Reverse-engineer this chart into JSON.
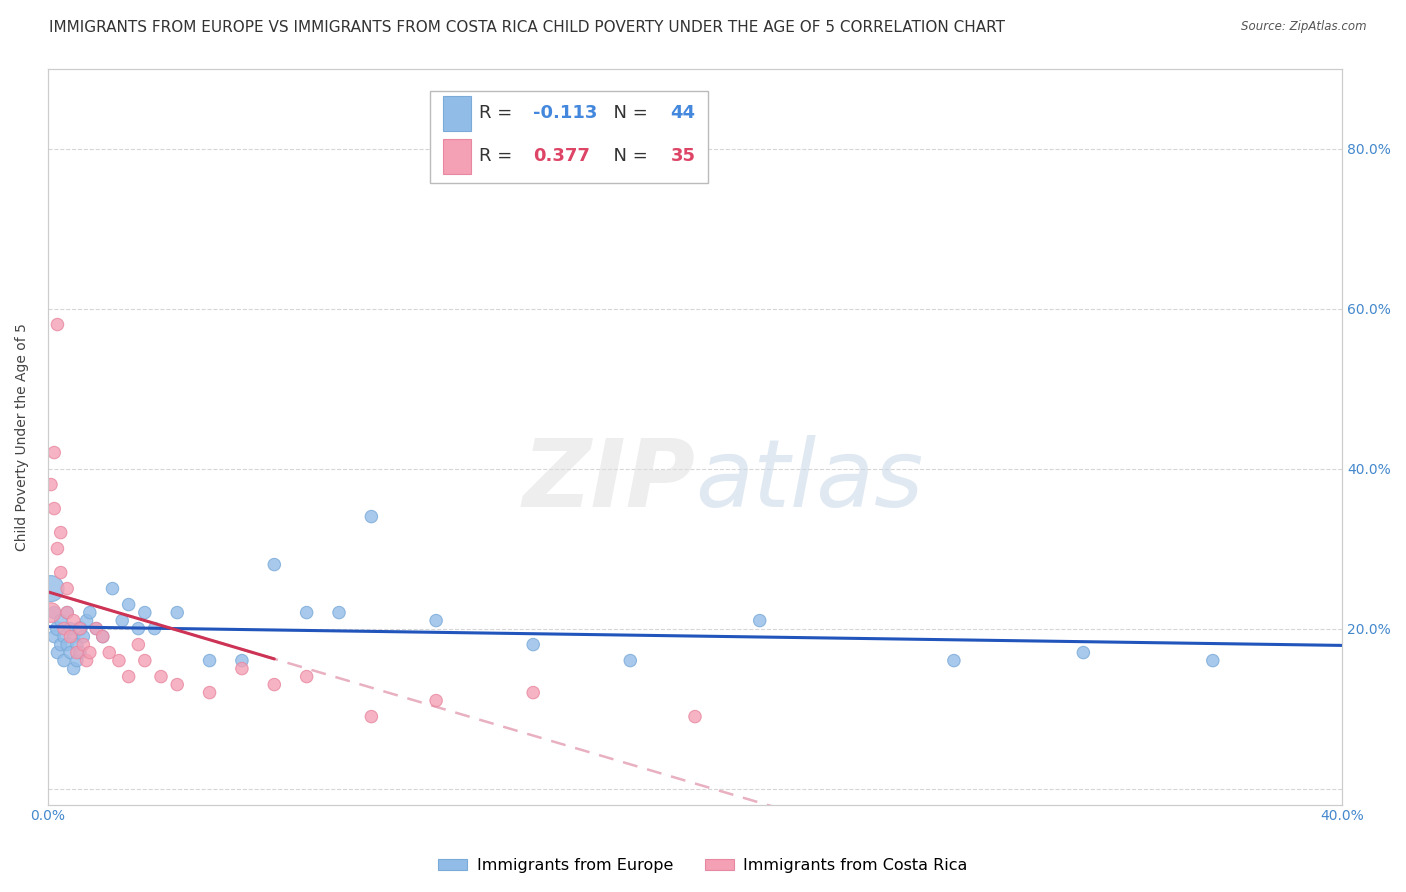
{
  "title": "IMMIGRANTS FROM EUROPE VS IMMIGRANTS FROM COSTA RICA CHILD POVERTY UNDER THE AGE OF 5 CORRELATION CHART",
  "source": "Source: ZipAtlas.com",
  "ylabel": "Child Poverty Under the Age of 5",
  "xlim": [
    0.0,
    0.4
  ],
  "ylim": [
    -0.02,
    0.9
  ],
  "legend_europe": "Immigrants from Europe",
  "legend_costa_rica": "Immigrants from Costa Rica",
  "R_europe": -0.113,
  "N_europe": 44,
  "R_costa_rica": 0.377,
  "N_costa_rica": 35,
  "europe_color": "#92bce8",
  "costa_rica_color": "#f4a0b5",
  "trendline_europe_color": "#2255bb",
  "trendline_costa_rica_solid_color": "#cc3355",
  "trendline_costa_rica_dashed_color": "#e8b0c0",
  "background_color": "#ffffff",
  "grid_color": "#cccccc",
  "europe_x": [
    0.001,
    0.002,
    0.002,
    0.003,
    0.003,
    0.004,
    0.004,
    0.005,
    0.005,
    0.006,
    0.006,
    0.007,
    0.007,
    0.008,
    0.008,
    0.009,
    0.009,
    0.01,
    0.01,
    0.011,
    0.012,
    0.013,
    0.015,
    0.017,
    0.02,
    0.023,
    0.025,
    0.028,
    0.03,
    0.033,
    0.04,
    0.05,
    0.06,
    0.07,
    0.08,
    0.09,
    0.1,
    0.12,
    0.15,
    0.18,
    0.22,
    0.28,
    0.32,
    0.36
  ],
  "europe_y": [
    0.25,
    0.22,
    0.19,
    0.2,
    0.17,
    0.21,
    0.18,
    0.19,
    0.16,
    0.22,
    0.18,
    0.2,
    0.17,
    0.19,
    0.15,
    0.18,
    0.16,
    0.2,
    0.17,
    0.19,
    0.21,
    0.22,
    0.2,
    0.19,
    0.25,
    0.21,
    0.23,
    0.2,
    0.22,
    0.2,
    0.22,
    0.16,
    0.16,
    0.28,
    0.22,
    0.22,
    0.34,
    0.21,
    0.18,
    0.16,
    0.21,
    0.16,
    0.17,
    0.16
  ],
  "europe_sizes": [
    350,
    80,
    80,
    100,
    80,
    80,
    80,
    80,
    80,
    80,
    80,
    80,
    80,
    80,
    80,
    80,
    80,
    100,
    80,
    80,
    80,
    80,
    80,
    80,
    80,
    80,
    80,
    80,
    80,
    80,
    80,
    80,
    80,
    80,
    80,
    80,
    80,
    80,
    80,
    80,
    80,
    80,
    80,
    80
  ],
  "costa_rica_x": [
    0.001,
    0.001,
    0.002,
    0.002,
    0.003,
    0.003,
    0.004,
    0.004,
    0.005,
    0.006,
    0.006,
    0.007,
    0.008,
    0.009,
    0.01,
    0.011,
    0.012,
    0.013,
    0.015,
    0.017,
    0.019,
    0.022,
    0.025,
    0.028,
    0.03,
    0.035,
    0.04,
    0.05,
    0.06,
    0.07,
    0.08,
    0.1,
    0.12,
    0.15,
    0.2
  ],
  "costa_rica_y": [
    0.22,
    0.38,
    0.42,
    0.35,
    0.3,
    0.58,
    0.32,
    0.27,
    0.2,
    0.25,
    0.22,
    0.19,
    0.21,
    0.17,
    0.2,
    0.18,
    0.16,
    0.17,
    0.2,
    0.19,
    0.17,
    0.16,
    0.14,
    0.18,
    0.16,
    0.14,
    0.13,
    0.12,
    0.15,
    0.13,
    0.14,
    0.09,
    0.11,
    0.12,
    0.09
  ],
  "costa_rica_sizes": [
    200,
    80,
    80,
    80,
    80,
    80,
    80,
    80,
    80,
    80,
    80,
    80,
    80,
    80,
    80,
    80,
    80,
    80,
    80,
    80,
    80,
    80,
    80,
    80,
    80,
    80,
    80,
    80,
    80,
    80,
    80,
    80,
    80,
    80,
    80
  ],
  "title_fontsize": 11,
  "axis_label_fontsize": 10,
  "tick_fontsize": 10,
  "legend_fontsize": 13
}
